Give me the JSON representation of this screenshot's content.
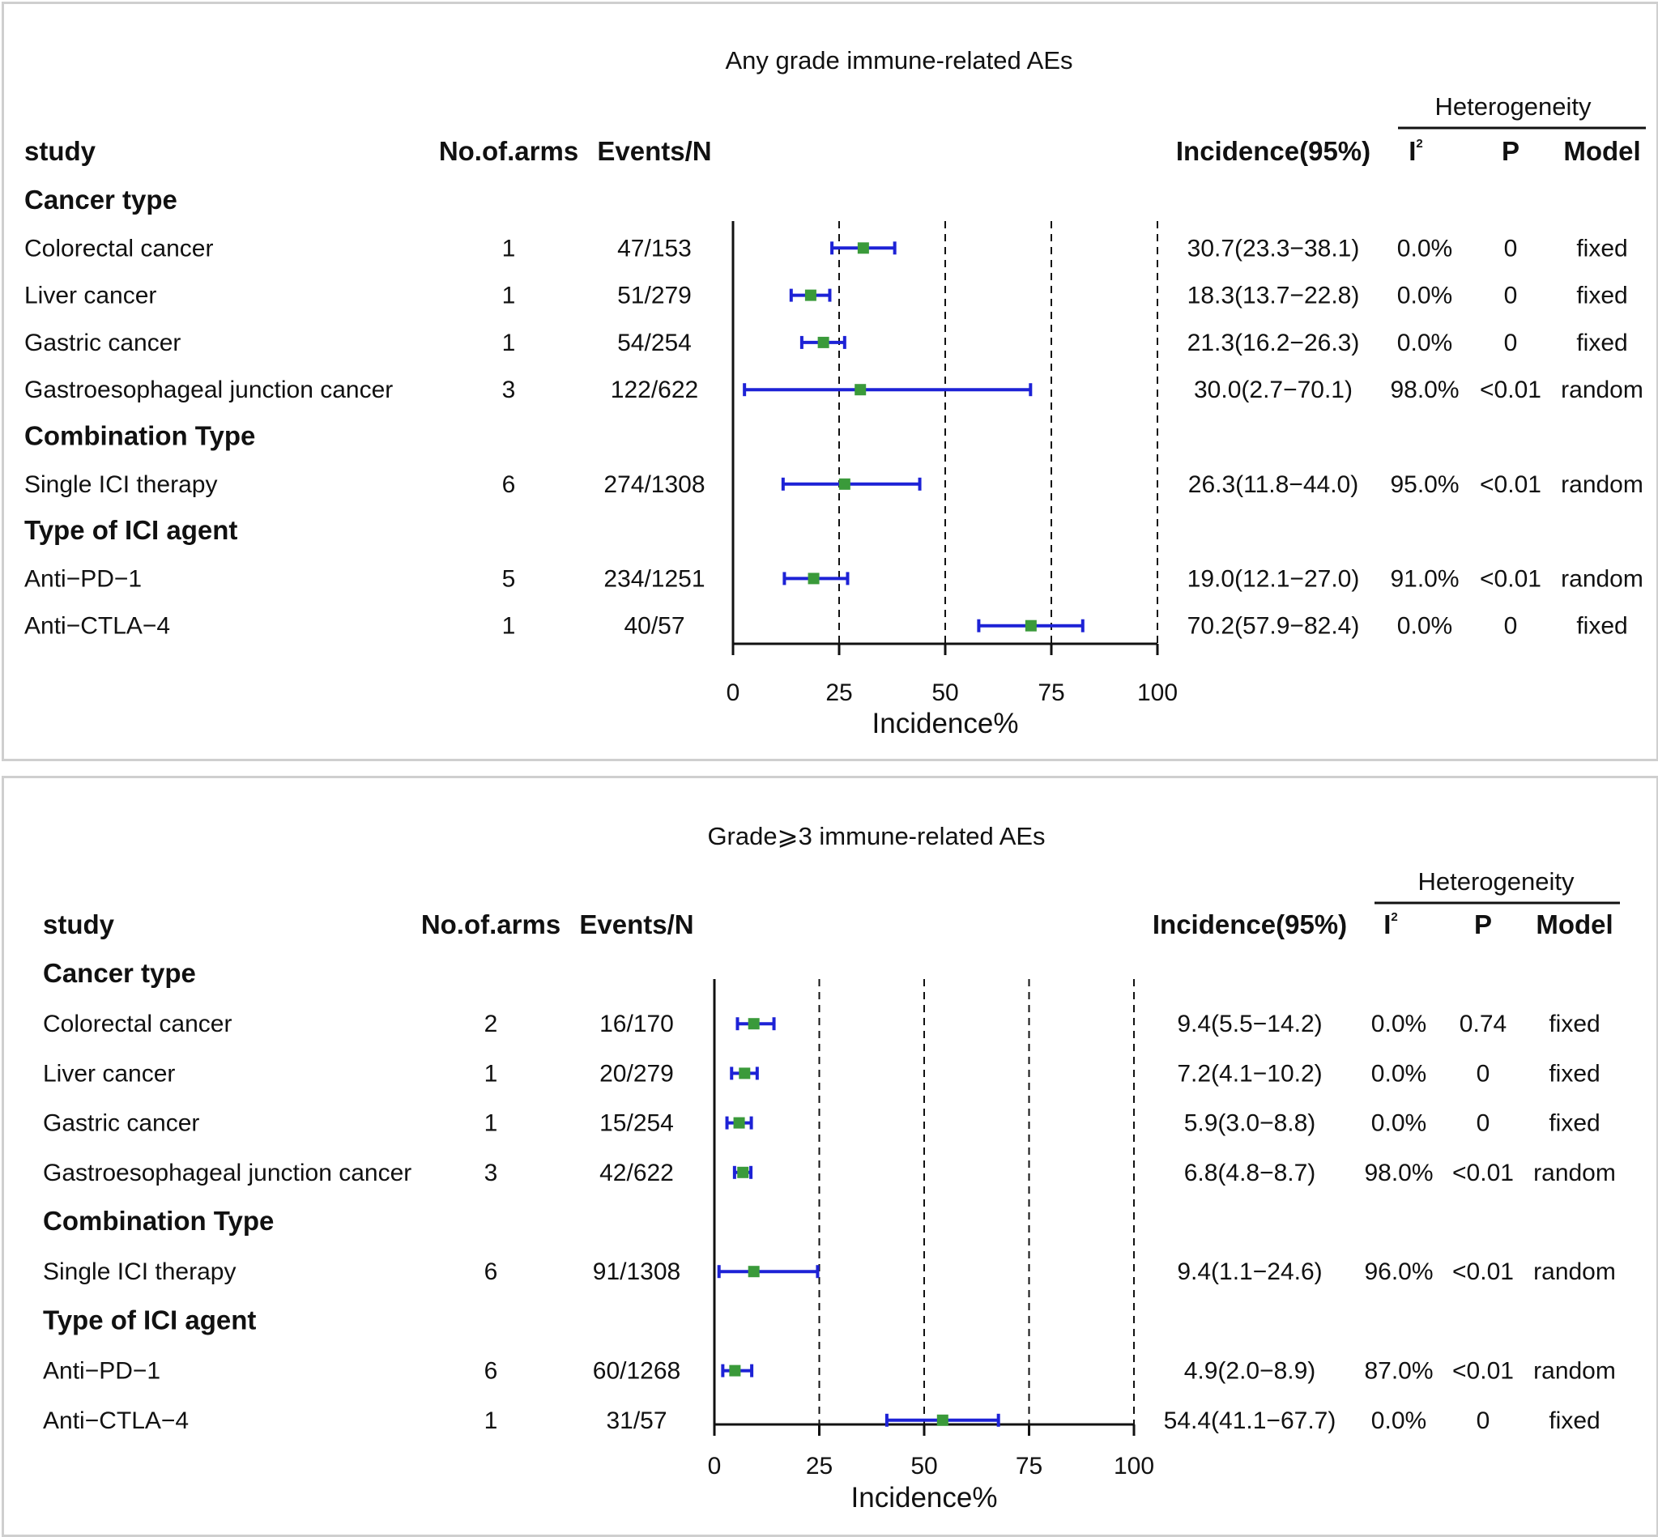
{
  "chart_data": [
    {
      "type": "forest",
      "title": "Any grade immune-related AEs",
      "columns": {
        "study": "study",
        "arms": "No.of.arms",
        "events": "Events/N",
        "incidence": "Incidence(95%)",
        "i2": "I",
        "i2_sup": "2",
        "p": "P",
        "model": "Model"
      },
      "heterogeneity_label": "Heterogeneity",
      "xlabel": "Incidence%",
      "xlim": [
        0,
        100
      ],
      "xticks": [
        0,
        25,
        50,
        75,
        100
      ],
      "reference_lines": [
        25,
        50,
        75,
        100
      ],
      "rows": [
        {
          "kind": "group",
          "label": "Cancer type"
        },
        {
          "kind": "study",
          "label": "Colorectal cancer",
          "arms": "1",
          "events": "47/153",
          "est": 30.7,
          "lo": 23.3,
          "hi": 38.1,
          "ci_text": "30.7(23.3−38.1)",
          "i2": "0.0%",
          "p": "0",
          "model": "fixed"
        },
        {
          "kind": "study",
          "label": "Liver cancer",
          "arms": "1",
          "events": "51/279",
          "est": 18.3,
          "lo": 13.7,
          "hi": 22.8,
          "ci_text": "18.3(13.7−22.8)",
          "i2": "0.0%",
          "p": "0",
          "model": "fixed"
        },
        {
          "kind": "study",
          "label": "Gastric cancer",
          "arms": "1",
          "events": "54/254",
          "est": 21.3,
          "lo": 16.2,
          "hi": 26.3,
          "ci_text": "21.3(16.2−26.3)",
          "i2": "0.0%",
          "p": "0",
          "model": "fixed"
        },
        {
          "kind": "study",
          "label": "Gastroesophageal junction cancer",
          "arms": "3",
          "events": "122/622",
          "est": 30.0,
          "lo": 2.7,
          "hi": 70.1,
          "ci_text": "30.0(2.7−70.1)",
          "i2": "98.0%",
          "p": "<0.01",
          "model": "random"
        },
        {
          "kind": "group",
          "label": "Combination Type"
        },
        {
          "kind": "study",
          "label": "Single ICI therapy",
          "arms": "6",
          "events": "274/1308",
          "est": 26.3,
          "lo": 11.8,
          "hi": 44.0,
          "ci_text": "26.3(11.8−44.0)",
          "i2": "95.0%",
          "p": "<0.01",
          "model": "random"
        },
        {
          "kind": "group",
          "label": "Type of ICI agent"
        },
        {
          "kind": "study",
          "label": "Anti−PD−1",
          "arms": "5",
          "events": "234/1251",
          "est": 19.0,
          "lo": 12.1,
          "hi": 27.0,
          "ci_text": "19.0(12.1−27.0)",
          "i2": "91.0%",
          "p": "<0.01",
          "model": "random"
        },
        {
          "kind": "study",
          "label": "Anti−CTLA−4",
          "arms": "1",
          "events": "40/57",
          "est": 70.2,
          "lo": 57.9,
          "hi": 82.4,
          "ci_text": "70.2(57.9−82.4)",
          "i2": "0.0%",
          "p": "0",
          "model": "fixed"
        }
      ]
    },
    {
      "type": "forest",
      "title": "Grade⩾3 immune-related AEs",
      "columns": {
        "study": "study",
        "arms": "No.of.arms",
        "events": "Events/N",
        "incidence": "Incidence(95%)",
        "i2": "I",
        "i2_sup": "2",
        "p": "P",
        "model": "Model"
      },
      "heterogeneity_label": "Heterogeneity",
      "xlabel": "Incidence%",
      "xlim": [
        0,
        100
      ],
      "xticks": [
        0,
        25,
        50,
        75,
        100
      ],
      "reference_lines": [
        25,
        50,
        75,
        100
      ],
      "rows": [
        {
          "kind": "group",
          "label": "Cancer type"
        },
        {
          "kind": "study",
          "label": "Colorectal cancer",
          "arms": "2",
          "events": "16/170",
          "est": 9.4,
          "lo": 5.5,
          "hi": 14.2,
          "ci_text": "9.4(5.5−14.2)",
          "i2": "0.0%",
          "p": "0.74",
          "model": "fixed"
        },
        {
          "kind": "study",
          "label": "Liver cancer",
          "arms": "1",
          "events": "20/279",
          "est": 7.2,
          "lo": 4.1,
          "hi": 10.2,
          "ci_text": "7.2(4.1−10.2)",
          "i2": "0.0%",
          "p": "0",
          "model": "fixed"
        },
        {
          "kind": "study",
          "label": "Gastric cancer",
          "arms": "1",
          "events": "15/254",
          "est": 5.9,
          "lo": 3.0,
          "hi": 8.8,
          "ci_text": "5.9(3.0−8.8)",
          "i2": "0.0%",
          "p": "0",
          "model": "fixed"
        },
        {
          "kind": "study",
          "label": "Gastroesophageal junction cancer",
          "arms": "3",
          "events": "42/622",
          "est": 6.8,
          "lo": 4.8,
          "hi": 8.7,
          "ci_text": "6.8(4.8−8.7)",
          "i2": "98.0%",
          "p": "<0.01",
          "model": "random"
        },
        {
          "kind": "group",
          "label": "Combination Type"
        },
        {
          "kind": "study",
          "label": "Single ICI therapy",
          "arms": "6",
          "events": "91/1308",
          "est": 9.4,
          "lo": 1.1,
          "hi": 24.6,
          "ci_text": "9.4(1.1−24.6)",
          "i2": "96.0%",
          "p": "<0.01",
          "model": "random"
        },
        {
          "kind": "group",
          "label": "Type of ICI agent"
        },
        {
          "kind": "study",
          "label": "Anti−PD−1",
          "arms": "6",
          "events": "60/1268",
          "est": 4.9,
          "lo": 2.0,
          "hi": 8.9,
          "ci_text": "4.9(2.0−8.9)",
          "i2": "87.0%",
          "p": "<0.01",
          "model": "random"
        },
        {
          "kind": "study",
          "label": "Anti−CTLA−4",
          "arms": "1",
          "events": "31/57",
          "est": 54.4,
          "lo": 41.1,
          "hi": 67.7,
          "ci_text": "54.4(41.1−67.7)",
          "i2": "0.0%",
          "p": "0",
          "model": "fixed"
        }
      ]
    }
  ],
  "colors": {
    "ci_line": "#1d22d6",
    "point": "#3a9a3a",
    "axis": "#111111",
    "ref_line": "#111111",
    "text": "#111111"
  }
}
